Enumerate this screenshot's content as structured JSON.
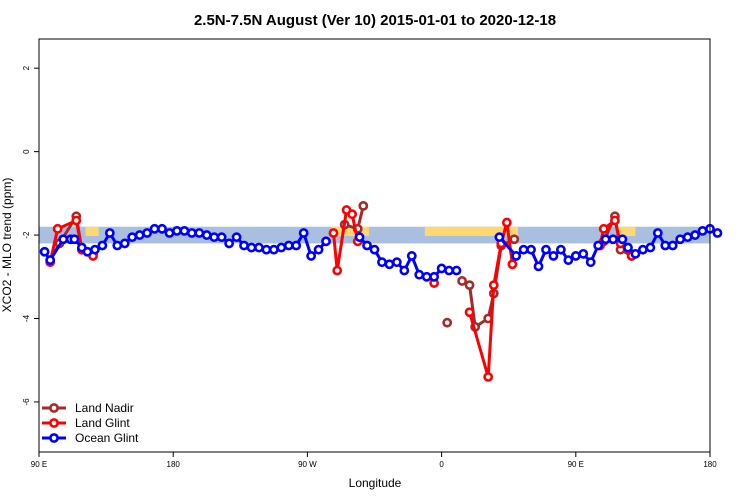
{
  "chart_data": {
    "type": "line",
    "title": "2.5N-7.5N August (Ver 10)   2015-01-01 to 2020-12-18",
    "xlabel": "Longitude",
    "ylabel": "XCO2 - MLO trend (ppm)",
    "xlim": [
      0,
      360
    ],
    "ylim": [
      -7.2,
      2.7
    ],
    "x_ticks": [
      {
        "pos": 0,
        "label": "90 E"
      },
      {
        "pos": 72,
        "label": "180"
      },
      {
        "pos": 144,
        "label": "90 W"
      },
      {
        "pos": 216,
        "label": "0"
      },
      {
        "pos": 288,
        "label": "90 E"
      },
      {
        "pos": 360,
        "label": "180"
      }
    ],
    "y_ticks": [
      -6,
      -4,
      -2,
      0,
      2
    ],
    "legend_position": "bottom-left",
    "background_band": {
      "y_range": [
        -2.2,
        -1.8
      ],
      "ocean_color": "#a8bfe0",
      "land_color": "#ffd872"
    },
    "land_spans": [
      [
        25,
        32
      ],
      [
        157,
        177
      ],
      [
        207,
        257
      ],
      [
        310,
        320
      ]
    ],
    "series": [
      {
        "name": "Land Nadir",
        "color": "#a52a2a",
        "segments": [
          [
            [
              6,
              -2.6
            ],
            [
              11,
              -2.2
            ],
            [
              20,
              -1.55
            ],
            [
              23,
              -2.35
            ],
            [
              29,
              -2.45
            ]
          ],
          [
            [
              164,
              -1.75
            ],
            [
              171,
              -1.85
            ],
            [
              174,
              -1.3
            ]
          ],
          [
            [
              219,
              -4.1
            ]
          ],
          [
            [
              227,
              -3.1
            ],
            [
              231,
              -3.2
            ],
            [
              234,
              -4.2
            ],
            [
              241,
              -4.0
            ],
            [
              244,
              -3.4
            ],
            [
              248,
              -2.25
            ],
            [
              255,
              -2.1
            ]
          ],
          [
            [
              303,
              -2.15
            ],
            [
              309,
              -1.55
            ],
            [
              312,
              -2.35
            ],
            [
              318,
              -2.5
            ]
          ]
        ]
      },
      {
        "name": "Land Glint",
        "color": "#ff0000",
        "segments": [
          [
            [
              6,
              -2.65
            ],
            [
              10,
              -1.85
            ],
            [
              20,
              -1.65
            ],
            [
              23,
              -2.35
            ],
            [
              29,
              -2.5
            ]
          ],
          [
            [
              158,
              -1.95
            ],
            [
              160,
              -2.85
            ],
            [
              165,
              -1.4
            ],
            [
              168,
              -1.5
            ],
            [
              171,
              -2.15
            ]
          ],
          [
            [
              212,
              -3.15
            ]
          ],
          [
            [
              231,
              -3.85
            ],
            [
              241,
              -5.4
            ],
            [
              244,
              -3.2
            ],
            [
              248,
              -2.2
            ],
            [
              251,
              -1.7
            ],
            [
              254,
              -2.7
            ]
          ],
          [
            [
              301,
              -2.25
            ],
            [
              303,
              -1.85
            ],
            [
              309,
              -1.65
            ],
            [
              312,
              -2.2
            ],
            [
              318,
              -2.5
            ]
          ]
        ]
      },
      {
        "name": "Ocean Glint",
        "color": "#0000ff",
        "segments": [
          [
            [
              3,
              -2.4
            ],
            [
              6,
              -2.6
            ],
            [
              13,
              -2.1
            ],
            [
              17,
              -2.1
            ],
            [
              19,
              -2.1
            ],
            [
              23,
              -2.3
            ],
            [
              26,
              -2.4
            ],
            [
              30,
              -2.35
            ],
            [
              34,
              -2.25
            ],
            [
              38,
              -1.95
            ],
            [
              42,
              -2.25
            ],
            [
              46,
              -2.2
            ],
            [
              50,
              -2.05
            ],
            [
              54,
              -2.0
            ],
            [
              58,
              -1.95
            ],
            [
              62,
              -1.85
            ],
            [
              66,
              -1.85
            ],
            [
              70,
              -1.95
            ],
            [
              74,
              -1.9
            ],
            [
              78,
              -1.9
            ],
            [
              82,
              -1.95
            ],
            [
              86,
              -1.95
            ],
            [
              90,
              -2.0
            ],
            [
              94,
              -2.05
            ],
            [
              98,
              -2.05
            ],
            [
              102,
              -2.2
            ],
            [
              106,
              -2.05
            ],
            [
              110,
              -2.25
            ],
            [
              114,
              -2.3
            ],
            [
              118,
              -2.3
            ],
            [
              122,
              -2.35
            ],
            [
              126,
              -2.35
            ],
            [
              130,
              -2.3
            ],
            [
              134,
              -2.25
            ],
            [
              138,
              -2.25
            ],
            [
              142,
              -1.95
            ],
            [
              146,
              -2.5
            ],
            [
              150,
              -2.35
            ],
            [
              154,
              -2.15
            ]
          ],
          [
            [
              172,
              -2.05
            ],
            [
              176,
              -2.25
            ],
            [
              180,
              -2.35
            ],
            [
              184,
              -2.65
            ],
            [
              188,
              -2.7
            ],
            [
              192,
              -2.65
            ],
            [
              196,
              -2.85
            ],
            [
              200,
              -2.5
            ],
            [
              204,
              -2.95
            ],
            [
              208,
              -3.0
            ],
            [
              212,
              -3.0
            ],
            [
              216,
              -2.8
            ],
            [
              220,
              -2.85
            ],
            [
              224,
              -2.85
            ]
          ],
          [
            [
              247,
              -2.05
            ],
            [
              256,
              -2.5
            ],
            [
              260,
              -2.35
            ],
            [
              264,
              -2.35
            ],
            [
              268,
              -2.75
            ],
            [
              272,
              -2.35
            ],
            [
              276,
              -2.5
            ],
            [
              280,
              -2.35
            ],
            [
              284,
              -2.6
            ],
            [
              288,
              -2.5
            ],
            [
              292,
              -2.45
            ],
            [
              296,
              -2.65
            ],
            [
              300,
              -2.25
            ],
            [
              304,
              -2.1
            ],
            [
              308,
              -2.1
            ],
            [
              313,
              -2.1
            ],
            [
              316,
              -2.3
            ],
            [
              320,
              -2.45
            ],
            [
              324,
              -2.35
            ],
            [
              328,
              -2.3
            ],
            [
              332,
              -1.95
            ],
            [
              336,
              -2.25
            ],
            [
              340,
              -2.25
            ],
            [
              344,
              -2.1
            ],
            [
              348,
              -2.05
            ],
            [
              352,
              -2.0
            ],
            [
              356,
              -1.9
            ],
            [
              360,
              -1.85
            ],
            [
              364,
              -1.95
            ]
          ]
        ]
      }
    ]
  }
}
